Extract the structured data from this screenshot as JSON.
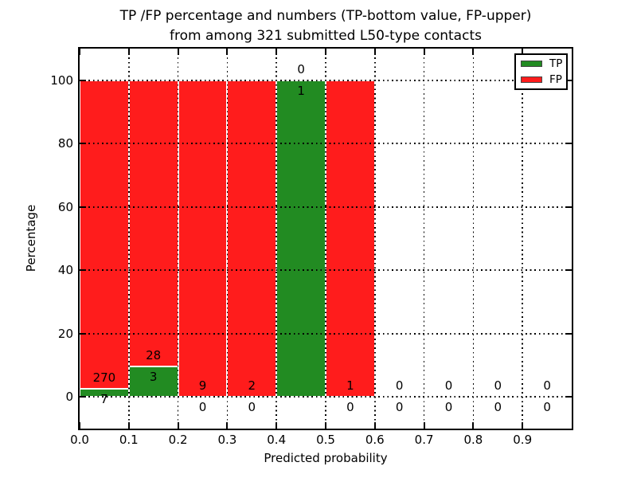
{
  "title": {
    "line1": "TP /FP percentage and numbers (TP-bottom value, FP-upper)",
    "line2": "from among 321 submitted L50-type contacts"
  },
  "colors": {
    "tp_green": "#228b22",
    "fp_red": "#ff1c1c",
    "grid": "#000000",
    "background": "#ffffff"
  },
  "chart_data": {
    "type": "bar",
    "stacked": true,
    "title": "TP /FP percentage and numbers (TP-bottom value, FP-upper) from among 321 submitted L50-type contacts",
    "xlabel": "Predicted probability",
    "ylabel": "Percentage",
    "xlim": [
      0.0,
      1.0
    ],
    "ylim": [
      -10,
      110
    ],
    "xticks": [
      "0.0",
      "0.1",
      "0.2",
      "0.3",
      "0.4",
      "0.5",
      "0.6",
      "0.7",
      "0.8",
      "0.9"
    ],
    "yticks": [
      0,
      20,
      40,
      60,
      80,
      100
    ],
    "grid": "dotted both axes, drawn over bars",
    "annotation_note": "FP count printed above TP-bar top, TP count printed below TP-bar top",
    "total_contacts": 321,
    "legend": {
      "position": "upper right",
      "entries": [
        {
          "label": "TP",
          "color": "#228b22"
        },
        {
          "label": "FP",
          "color": "#ff1c1c"
        }
      ]
    },
    "bins": [
      {
        "x_start": 0.0,
        "x_end": 0.1,
        "tp": 7,
        "fp": 270,
        "tp_pct": 2.53,
        "fp_pct": 97.47
      },
      {
        "x_start": 0.1,
        "x_end": 0.2,
        "tp": 3,
        "fp": 28,
        "tp_pct": 9.68,
        "fp_pct": 90.32
      },
      {
        "x_start": 0.2,
        "x_end": 0.3,
        "tp": 0,
        "fp": 9,
        "tp_pct": 0,
        "fp_pct": 100
      },
      {
        "x_start": 0.3,
        "x_end": 0.4,
        "tp": 0,
        "fp": 2,
        "tp_pct": 0,
        "fp_pct": 100
      },
      {
        "x_start": 0.4,
        "x_end": 0.5,
        "tp": 1,
        "fp": 0,
        "tp_pct": 100,
        "fp_pct": 0
      },
      {
        "x_start": 0.5,
        "x_end": 0.6,
        "tp": 0,
        "fp": 1,
        "tp_pct": 0,
        "fp_pct": 100
      },
      {
        "x_start": 0.6,
        "x_end": 0.7,
        "tp": 0,
        "fp": 0,
        "tp_pct": 0,
        "fp_pct": 0
      },
      {
        "x_start": 0.7,
        "x_end": 0.8,
        "tp": 0,
        "fp": 0,
        "tp_pct": 0,
        "fp_pct": 0
      },
      {
        "x_start": 0.8,
        "x_end": 0.9,
        "tp": 0,
        "fp": 0,
        "tp_pct": 0,
        "fp_pct": 0
      },
      {
        "x_start": 0.9,
        "x_end": 1.0,
        "tp": 0,
        "fp": 0,
        "tp_pct": 0,
        "fp_pct": 0
      }
    ]
  }
}
